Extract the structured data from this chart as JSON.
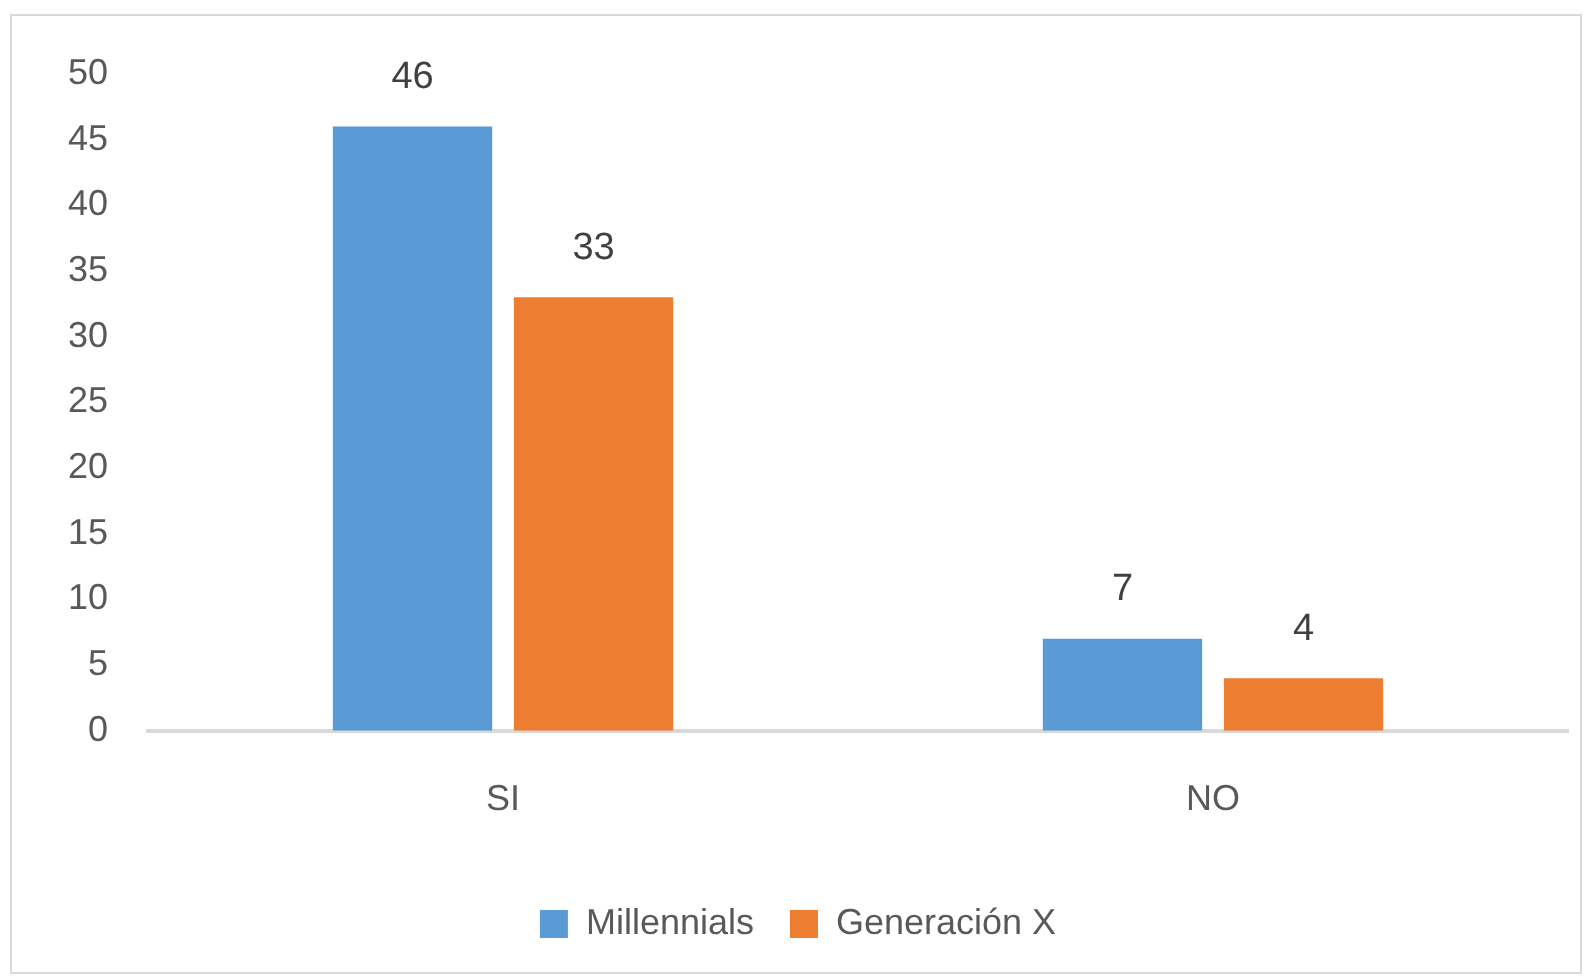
{
  "chart_data": {
    "type": "bar",
    "categories": [
      "SI",
      "NO"
    ],
    "series": [
      {
        "name": "Millennials",
        "color": "#5b9bd5",
        "values": [
          46,
          7
        ]
      },
      {
        "name": "Generación X",
        "color": "#ed7d31",
        "values": [
          33,
          4
        ]
      }
    ],
    "ylim": [
      0,
      50
    ],
    "yticks": [
      0,
      5,
      10,
      15,
      20,
      25,
      30,
      35,
      40,
      45,
      50
    ],
    "grid": false,
    "legend": "bottom",
    "data_labels": true
  }
}
